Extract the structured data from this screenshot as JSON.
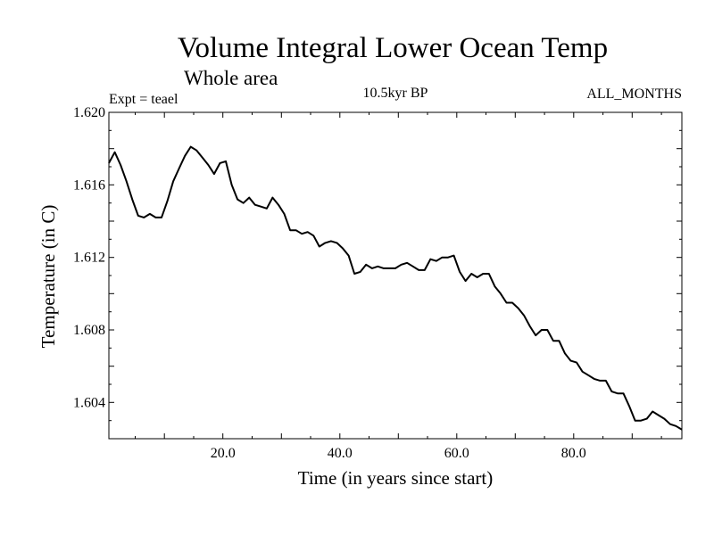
{
  "chart_data": {
    "type": "line",
    "title": "Volume Integral Lower Ocean Temp",
    "subtitle": "Whole area",
    "annotations": {
      "experiment": "Expt = teael",
      "period": "10.5kyr BP",
      "months": "ALL_MONTHS"
    },
    "xlabel": "Time (in years since start)",
    "ylabel": "Temperature (in C)",
    "xlim": [
      0.5,
      98.5
    ],
    "ylim": [
      1.602,
      1.62
    ],
    "xticks": [
      {
        "value": 20,
        "label": "20.0"
      },
      {
        "value": 40,
        "label": "40.0"
      },
      {
        "value": 60,
        "label": "60.0"
      },
      {
        "value": 80,
        "label": "80.0"
      }
    ],
    "yticks": [
      {
        "value": 1.604,
        "label": "1.604"
      },
      {
        "value": 1.608,
        "label": "1.608"
      },
      {
        "value": 1.612,
        "label": "1.612"
      },
      {
        "value": 1.616,
        "label": "1.616"
      },
      {
        "value": 1.62,
        "label": "1.620"
      }
    ],
    "grid": false,
    "series": [
      {
        "name": "Lower Ocean Temp",
        "x": [
          0.5,
          1.5,
          2.5,
          3.5,
          4.5,
          5.5,
          6.5,
          7.5,
          8.5,
          9.5,
          10.5,
          11.5,
          12.5,
          13.5,
          14.5,
          15.5,
          16.5,
          17.5,
          18.5,
          19.5,
          20.5,
          21.5,
          22.5,
          23.5,
          24.5,
          25.5,
          26.5,
          27.5,
          28.5,
          29.5,
          30.5,
          31.5,
          32.5,
          33.5,
          34.5,
          35.5,
          36.5,
          37.5,
          38.5,
          39.5,
          40.5,
          41.5,
          42.5,
          43.5,
          44.5,
          45.5,
          46.5,
          47.5,
          48.5,
          49.5,
          50.5,
          51.5,
          52.5,
          53.5,
          54.5,
          55.5,
          56.5,
          57.5,
          58.5,
          59.5,
          60.5,
          61.5,
          62.5,
          63.5,
          64.5,
          65.5,
          66.5,
          67.5,
          68.5,
          69.5,
          70.5,
          71.5,
          72.5,
          73.5,
          74.5,
          75.5,
          76.5,
          77.5,
          78.5,
          79.5,
          80.5,
          81.5,
          82.5,
          83.5,
          84.5,
          85.5,
          86.5,
          87.5,
          88.5,
          89.5,
          90.5,
          91.5,
          92.5,
          93.5,
          94.5,
          95.5,
          96.5,
          97.5,
          98.5
        ],
        "values": [
          1.6172,
          1.6178,
          1.6171,
          1.6162,
          1.6152,
          1.6143,
          1.6142,
          1.6144,
          1.6142,
          1.6142,
          1.6151,
          1.6162,
          1.6169,
          1.6176,
          1.6181,
          1.6179,
          1.6175,
          1.6171,
          1.6166,
          1.6172,
          1.6173,
          1.616,
          1.6152,
          1.615,
          1.6153,
          1.6149,
          1.6148,
          1.6147,
          1.6153,
          1.6149,
          1.6144,
          1.6135,
          1.6135,
          1.6133,
          1.6134,
          1.6132,
          1.6126,
          1.6128,
          1.6129,
          1.6128,
          1.6125,
          1.6121,
          1.6111,
          1.6112,
          1.6116,
          1.6114,
          1.6115,
          1.6114,
          1.6114,
          1.6114,
          1.6116,
          1.6117,
          1.6115,
          1.6113,
          1.6113,
          1.6119,
          1.6118,
          1.612,
          1.612,
          1.6121,
          1.6112,
          1.6107,
          1.6111,
          1.6109,
          1.6111,
          1.6111,
          1.6104,
          1.61,
          1.6095,
          1.6095,
          1.6092,
          1.6088,
          1.6082,
          1.6077,
          1.608,
          1.608,
          1.6074,
          1.6074,
          1.6067,
          1.6063,
          1.6062,
          1.6057,
          1.6055,
          1.6053,
          1.6052,
          1.6052,
          1.6046,
          1.6045,
          1.6045,
          1.6038,
          1.603,
          1.603,
          1.6031,
          1.6035,
          1.6033,
          1.6031,
          1.6028,
          1.6027,
          1.6025
        ]
      }
    ]
  }
}
